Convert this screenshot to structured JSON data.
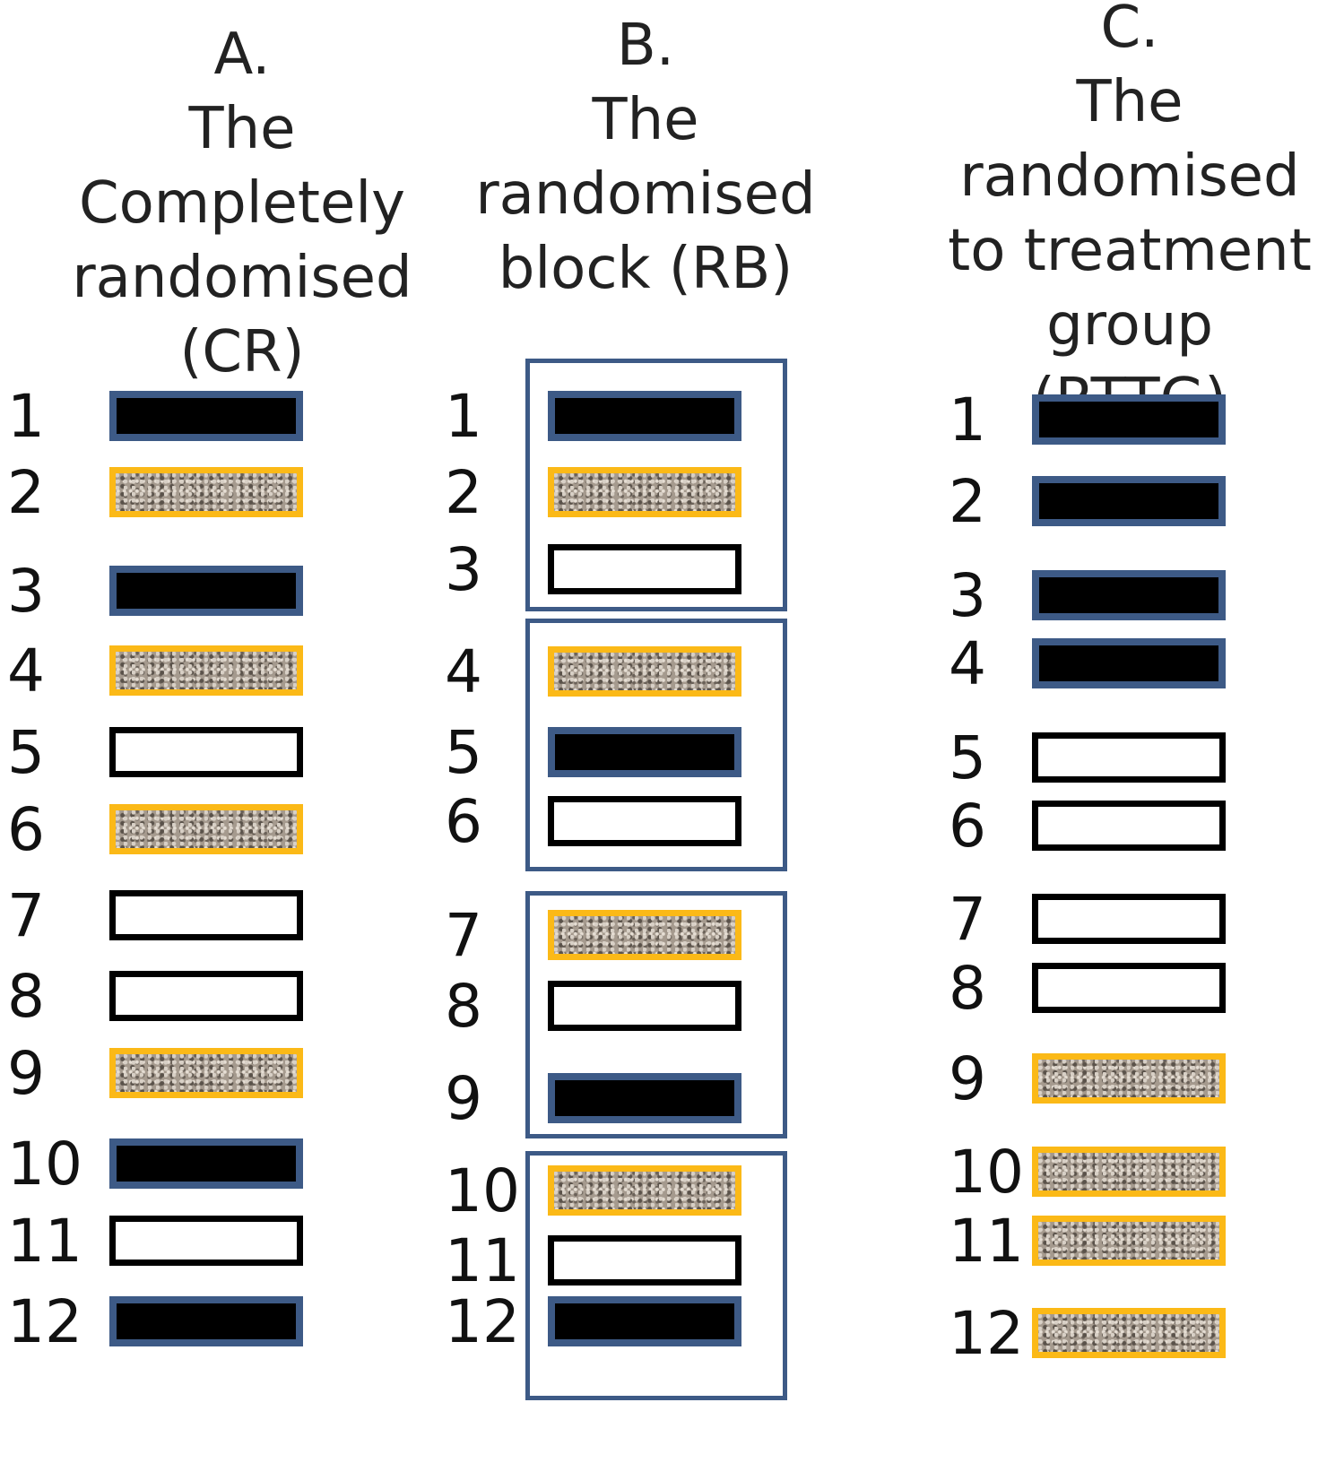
{
  "columns": [
    {
      "letter": "A.",
      "title_lines": [
        "The Completely",
        "randomised (CR)"
      ]
    },
    {
      "letter": "B.",
      "title_lines": [
        "The",
        "randomised",
        "block (RB)"
      ]
    },
    {
      "letter": "C.",
      "title_lines": [
        "The",
        "randomised",
        "to treatment",
        "group (RTTG)"
      ]
    }
  ],
  "legend_types": {
    "black": "black filled bar with blue border",
    "grey": "speckled grey bar with orange border",
    "white": "white bar with black border"
  },
  "colors": {
    "blue_border": "#3d5a86",
    "orange_border": "#fbb917",
    "black": "#000000"
  },
  "design_A": [
    "black",
    "grey",
    "black",
    "grey",
    "white",
    "grey",
    "white",
    "white",
    "grey",
    "black",
    "white",
    "black"
  ],
  "design_B": [
    "black",
    "grey",
    "white",
    "grey",
    "black",
    "white",
    "grey",
    "white",
    "black",
    "grey",
    "white",
    "black"
  ],
  "design_B_blocks": [
    [
      1,
      3
    ],
    [
      4,
      6
    ],
    [
      7,
      9
    ],
    [
      10,
      12
    ]
  ],
  "design_C": [
    "black",
    "black",
    "black",
    "black",
    "white",
    "white",
    "white",
    "white",
    "grey",
    "grey",
    "grey",
    "grey"
  ],
  "labels": [
    "1",
    "2",
    "3",
    "4",
    "5",
    "6",
    "7",
    "8",
    "9",
    "10",
    "11",
    "12"
  ]
}
